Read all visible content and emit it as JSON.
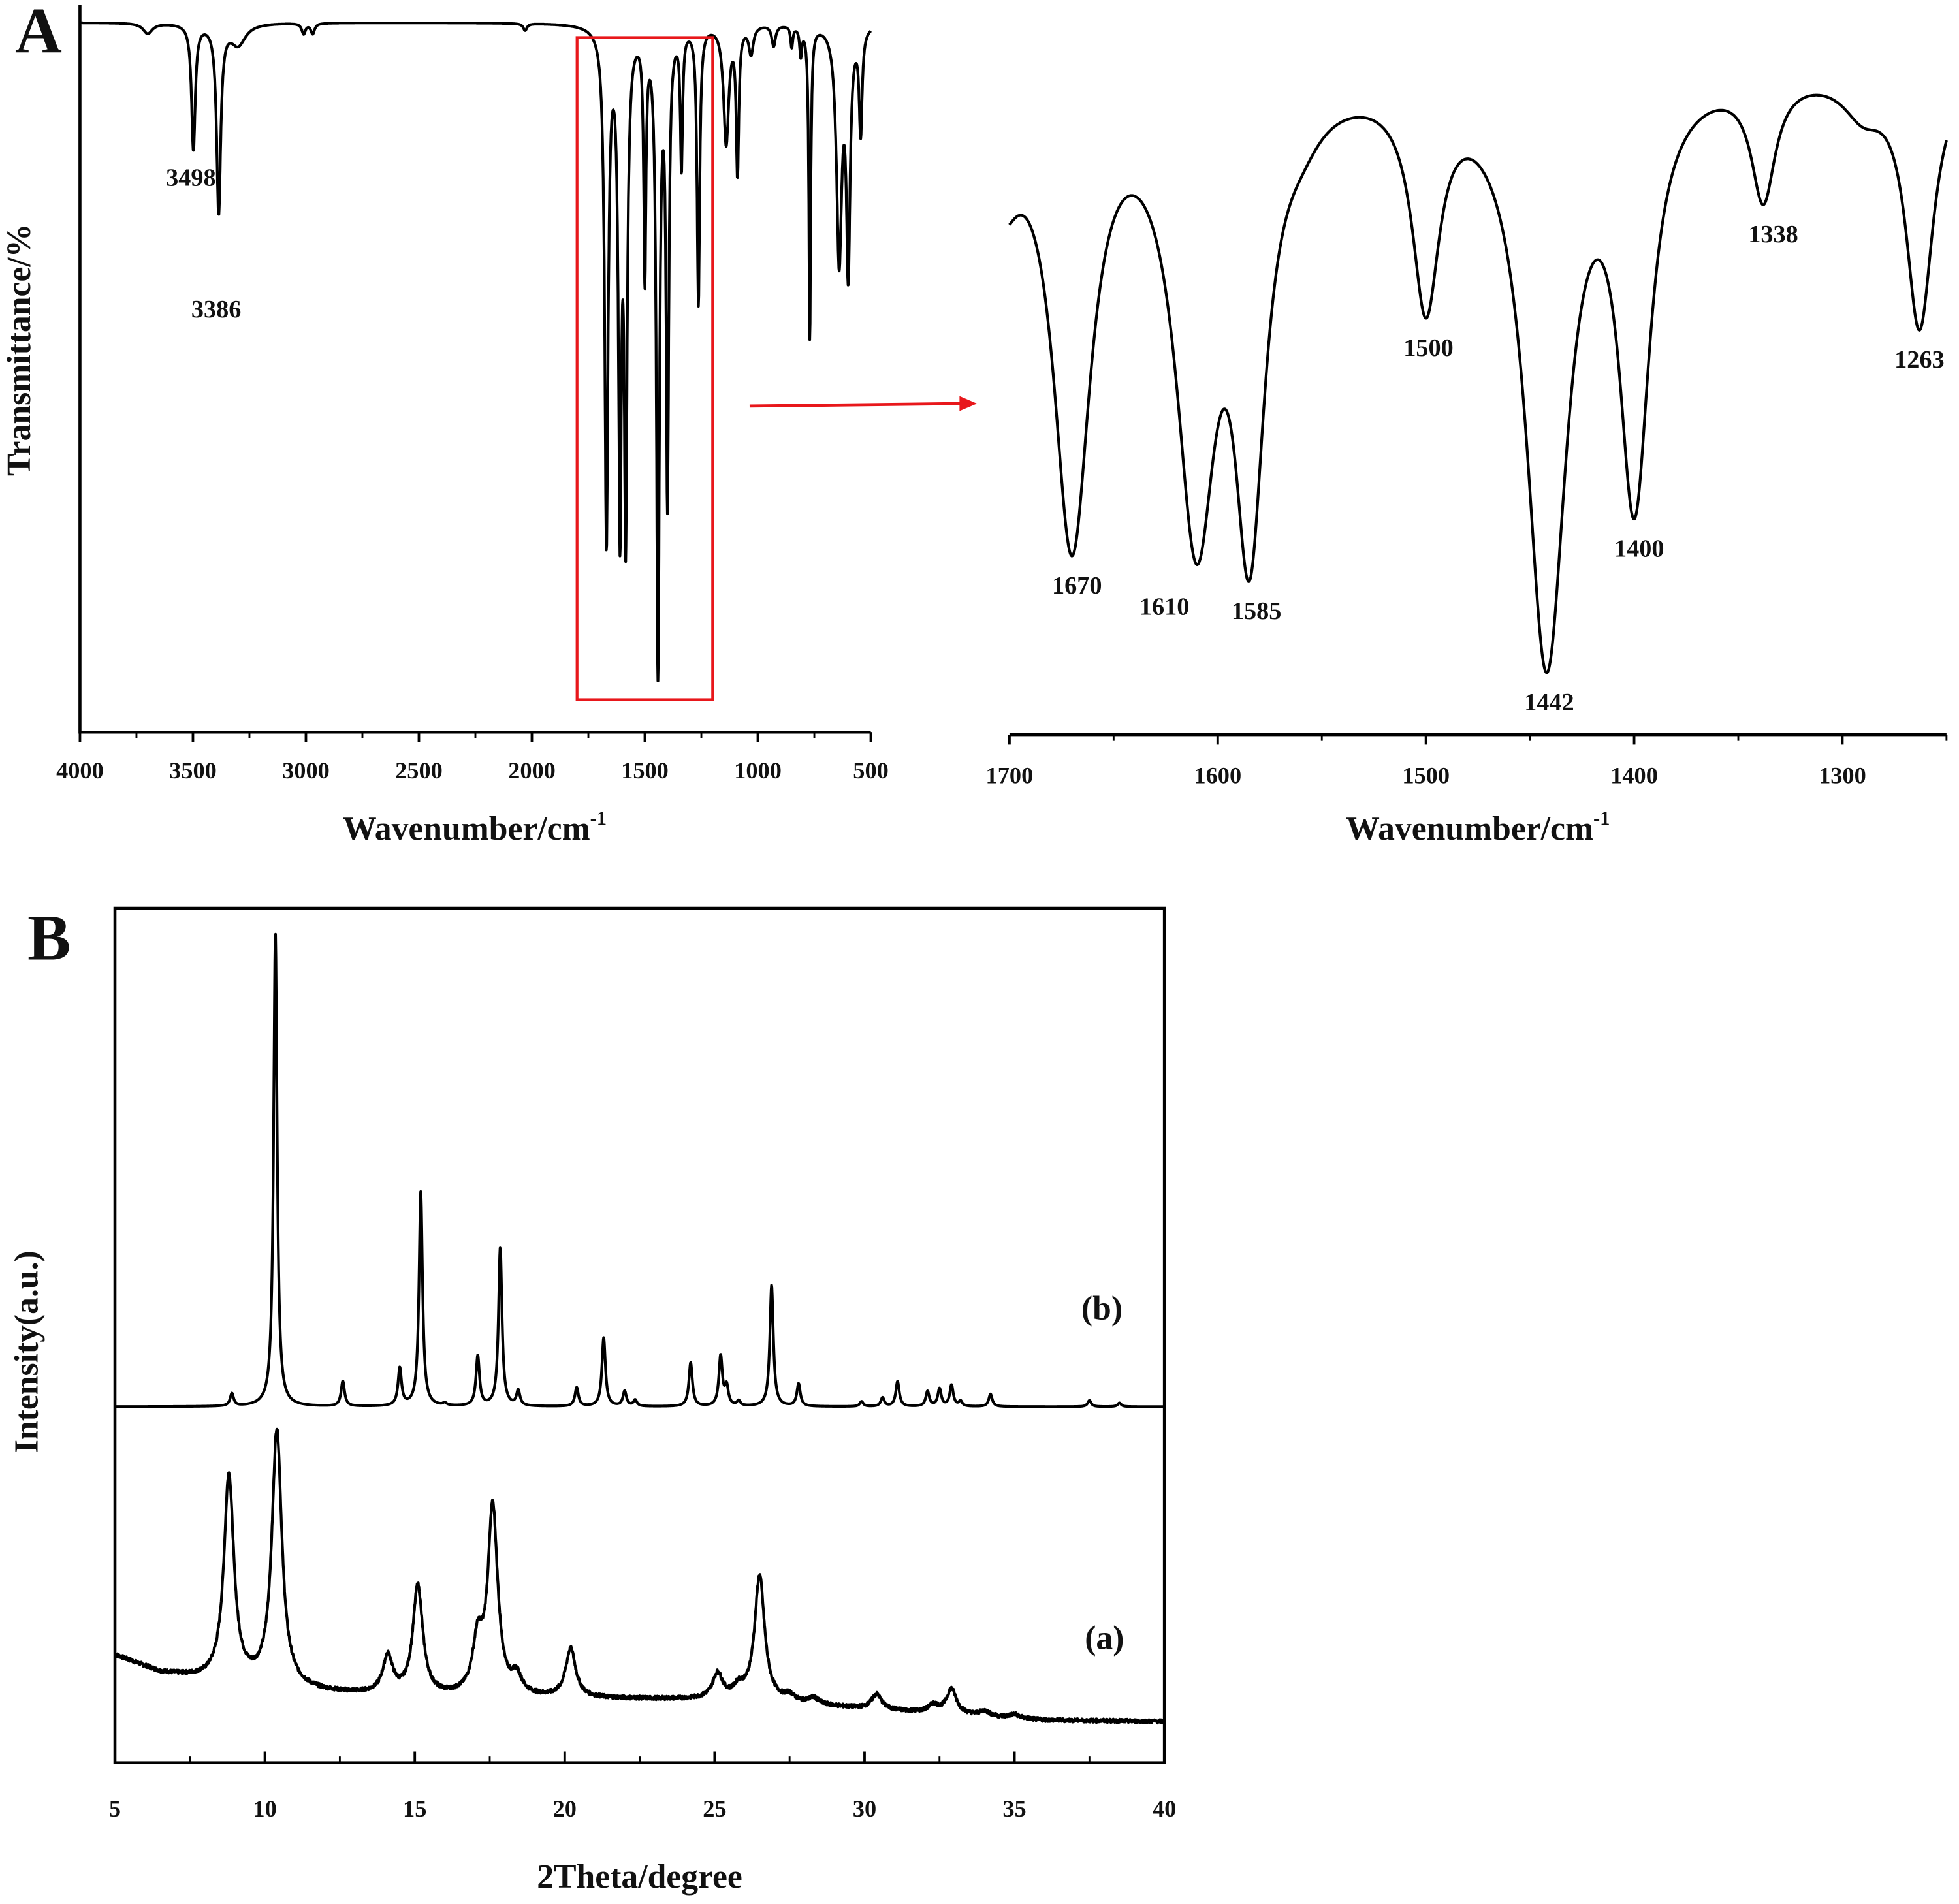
{
  "panel_labels": [
    "A",
    "B"
  ],
  "colors": {
    "highlight": "#e8171b",
    "line": "#000000"
  },
  "chart_data": [
    {
      "id": "ir-full",
      "type": "line",
      "title": "",
      "xlabel": "Wavenumber/cm",
      "xlabel_sup": "-1",
      "ylabel": "Transmittance/%",
      "xlim": [
        4000,
        500
      ],
      "ylim": [
        0,
        100
      ],
      "xticks": [
        "4000",
        "3500",
        "3000",
        "2500",
        "2000",
        "1500",
        "1000",
        "500"
      ],
      "highlight_range": [
        1800,
        1200
      ],
      "annotations": [
        {
          "text": "3498",
          "x": 3498
        },
        {
          "text": "3386",
          "x": 3386
        }
      ],
      "peaks": [
        [
          3700,
          1.5,
          25
        ],
        [
          3498,
          18,
          10
        ],
        [
          3386,
          27,
          11
        ],
        [
          3300,
          3,
          40
        ],
        [
          3010,
          1.5,
          10
        ],
        [
          2970,
          1.5,
          10
        ],
        [
          2030,
          1,
          10
        ],
        [
          1670,
          75,
          9
        ],
        [
          1610,
          74,
          8
        ],
        [
          1585,
          75,
          8
        ],
        [
          1500,
          36,
          6
        ],
        [
          1442,
          94,
          8
        ],
        [
          1400,
          69,
          7
        ],
        [
          1338,
          20,
          6
        ],
        [
          1263,
          40,
          7
        ],
        [
          1140,
          17,
          14
        ],
        [
          1090,
          21,
          7
        ],
        [
          1030,
          4,
          12
        ],
        [
          930,
          3,
          10
        ],
        [
          850,
          3,
          6
        ],
        [
          810,
          4,
          6
        ],
        [
          770,
          45,
          5
        ],
        [
          640,
          34,
          14
        ],
        [
          600,
          35,
          10
        ],
        [
          545,
          15,
          8
        ]
      ]
    },
    {
      "id": "ir-zoom",
      "type": "line",
      "xlabel": "Wavenumber/cm",
      "xlabel_sup": "-1",
      "xlim": [
        1700,
        1250
      ],
      "ylim": [
        0,
        100
      ],
      "xticks": [
        "1700",
        "1600",
        "1500",
        "1400",
        "1300"
      ],
      "annotations": [
        {
          "text": "1670",
          "x": 1670
        },
        {
          "text": "1610",
          "x": 1610
        },
        {
          "text": "1585",
          "x": 1585
        },
        {
          "text": "1500",
          "x": 1500
        },
        {
          "text": "1442",
          "x": 1442
        },
        {
          "text": "1400",
          "x": 1400
        },
        {
          "text": "1338",
          "x": 1338
        },
        {
          "text": "1263",
          "x": 1263
        }
      ],
      "peaks": [
        [
          1705,
          20,
          12
        ],
        [
          1670,
          78,
          11
        ],
        [
          1610,
          78,
          12
        ],
        [
          1585,
          80,
          9
        ],
        [
          1560,
          4,
          12
        ],
        [
          1500,
          37,
          8
        ],
        [
          1442,
          98,
          12
        ],
        [
          1400,
          71,
          9
        ],
        [
          1338,
          20,
          7
        ],
        [
          1290,
          6,
          12
        ],
        [
          1263,
          42,
          8
        ]
      ]
    },
    {
      "id": "xrd",
      "type": "line",
      "xlabel": "2Theta/degree",
      "ylabel": "Intensity(a.u.)",
      "xlim": [
        5,
        40
      ],
      "ylim": [
        0,
        684
      ],
      "xticks": [
        "5",
        "10",
        "15",
        "20",
        "25",
        "30",
        "35",
        "40"
      ],
      "series": [
        {
          "name": "(b)",
          "baseline": [
            [
              5,
              285
            ],
            [
              40,
              285
            ]
          ],
          "width": 0.07,
          "peaks": [
            [
              8.9,
              10
            ],
            [
              10.35,
              380
            ],
            [
              12.6,
              20
            ],
            [
              14.5,
              30
            ],
            [
              15.2,
              172
            ],
            [
              16.0,
              2
            ],
            [
              17.1,
              40
            ],
            [
              17.85,
              127
            ],
            [
              18.45,
              12
            ],
            [
              20.4,
              15
            ],
            [
              21.3,
              55
            ],
            [
              22.0,
              12
            ],
            [
              22.35,
              5
            ],
            [
              24.2,
              35
            ],
            [
              25.2,
              40
            ],
            [
              25.4,
              15
            ],
            [
              25.8,
              4
            ],
            [
              26.9,
              97
            ],
            [
              27.8,
              18
            ],
            [
              29.9,
              4
            ],
            [
              30.6,
              7
            ],
            [
              31.1,
              20
            ],
            [
              32.1,
              12
            ],
            [
              32.5,
              14
            ],
            [
              32.9,
              17
            ],
            [
              33.2,
              4
            ],
            [
              34.2,
              10
            ],
            [
              37.5,
              5
            ],
            [
              38.5,
              3
            ]
          ]
        },
        {
          "name": "(a)",
          "baseline": [
            [
              5,
              86
            ],
            [
              6.5,
              72
            ],
            [
              8,
              66
            ],
            [
              12,
              56
            ],
            [
              15,
              52
            ],
            [
              22,
              51
            ],
            [
              26,
              50
            ],
            [
              30,
              43
            ],
            [
              36,
              34
            ],
            [
              40,
              33
            ]
          ],
          "width": 0.2,
          "peaks": [
            [
              8.8,
              165
            ],
            [
              10.4,
              205
            ],
            [
              14.1,
              30
            ],
            [
              15.1,
              88
            ],
            [
              17.1,
              40
            ],
            [
              17.6,
              150
            ],
            [
              18.4,
              14
            ],
            [
              20.2,
              39
            ],
            [
              25.1,
              20
            ],
            [
              25.8,
              8
            ],
            [
              26.5,
              100
            ],
            [
              27.5,
              5
            ],
            [
              28.3,
              5
            ],
            [
              30.4,
              12
            ],
            [
              32.3,
              6
            ],
            [
              32.9,
              20
            ],
            [
              34.0,
              4
            ],
            [
              35.0,
              3
            ]
          ]
        }
      ]
    }
  ]
}
